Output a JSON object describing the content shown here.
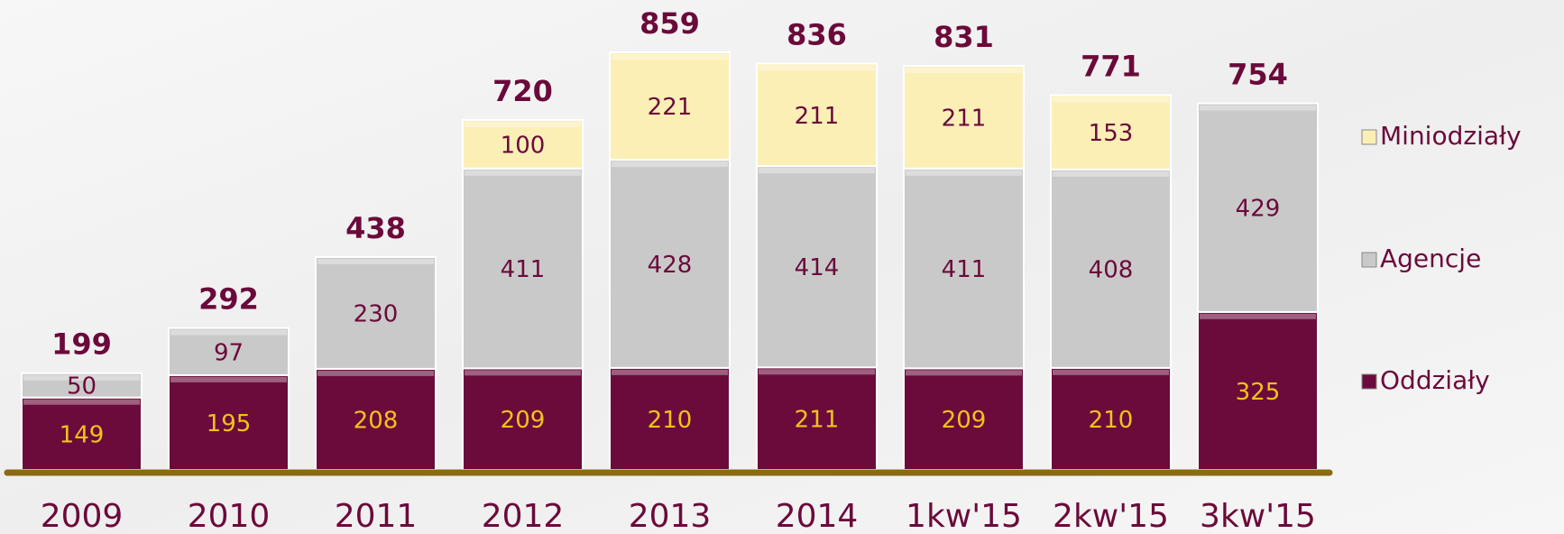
{
  "chart_data": {
    "type": "stacked_bar",
    "categories": [
      "2009",
      "2010",
      "2011",
      "2012",
      "2013",
      "2014",
      "1kw'15",
      "2kw'15",
      "3kw'15"
    ],
    "series": [
      {
        "name": "Oddziały",
        "color": "#6b0b3b",
        "values": [
          149,
          195,
          208,
          209,
          210,
          211,
          209,
          210,
          325
        ]
      },
      {
        "name": "Agencje",
        "color": "#c9c9c9",
        "values": [
          50,
          97,
          230,
          411,
          428,
          414,
          411,
          408,
          429
        ]
      },
      {
        "name": "Miniodziały",
        "color": "#fbefb6",
        "values": [
          null,
          null,
          null,
          100,
          221,
          211,
          211,
          153,
          null
        ]
      }
    ],
    "totals": [
      199,
      292,
      438,
      720,
      859,
      836,
      831,
      771,
      754
    ],
    "legend": "right"
  }
}
